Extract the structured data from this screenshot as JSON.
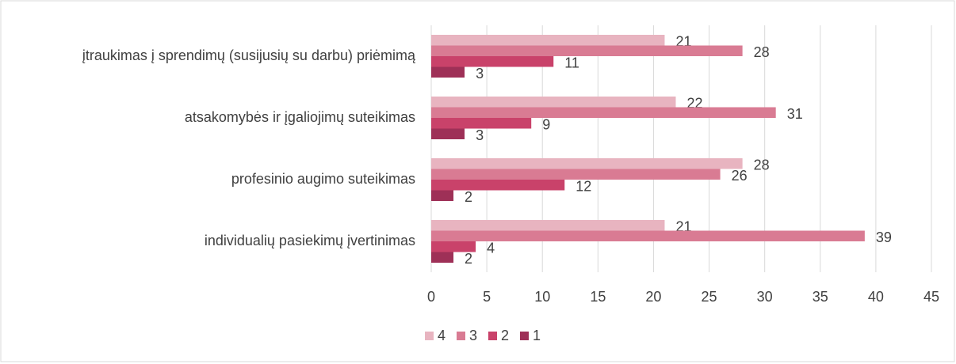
{
  "chart_data": {
    "type": "hbar",
    "categories": [
      "įtraukimas į sprendimų (susijusių su darbu) priėmimą",
      "atsakomybės ir įgaliojimų suteikimas",
      "profesinio augimo suteikimas",
      "individualių pasiekimų įvertinimas"
    ],
    "series": [
      {
        "name": "4",
        "color": "#e8b4c0",
        "values": [
          21,
          22,
          28,
          21
        ]
      },
      {
        "name": "3",
        "color": "#d97b93",
        "values": [
          28,
          31,
          26,
          39
        ]
      },
      {
        "name": "2",
        "color": "#c9426a",
        "values": [
          11,
          9,
          12,
          4
        ]
      },
      {
        "name": "1",
        "color": "#9e3057",
        "values": [
          3,
          3,
          2,
          2
        ]
      }
    ],
    "xlim": [
      0,
      45
    ],
    "xticks": [
      0,
      5,
      10,
      15,
      20,
      25,
      30,
      35,
      40,
      45
    ],
    "grid": true,
    "legend": "bottom"
  }
}
